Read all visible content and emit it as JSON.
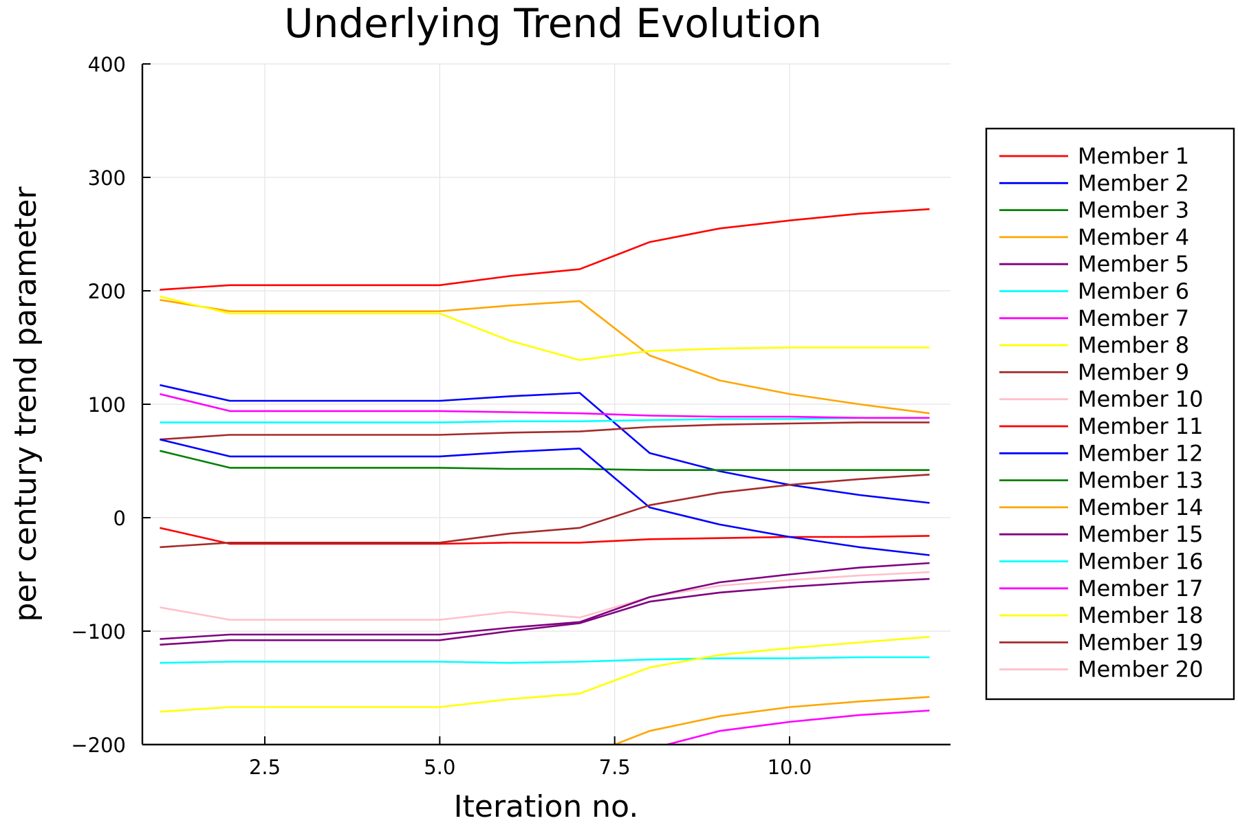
{
  "chart_data": {
    "type": "line",
    "title": "Underlying Trend Evolution",
    "xlabel": "Iteration no.",
    "ylabel": "per century trend parameter",
    "xlim": [
      0.75,
      12.3
    ],
    "ylim": [
      -200,
      400
    ],
    "xticks": [
      2.5,
      5.0,
      7.5,
      10.0
    ],
    "xtick_labels": [
      "2.5",
      "5.0",
      "7.5",
      "10.0"
    ],
    "yticks": [
      -200,
      -100,
      0,
      100,
      200,
      300,
      400
    ],
    "ytick_labels": [
      "−200",
      "−100",
      "0",
      "100",
      "200",
      "300",
      "400"
    ],
    "grid": true,
    "legend_position": "right",
    "x": [
      1,
      2,
      3,
      4,
      5,
      6,
      7,
      8,
      9,
      10,
      11,
      12
    ],
    "series": [
      {
        "name": "Member 1",
        "color": "#ff0000",
        "values": [
          201,
          205,
          205,
          205,
          205,
          213,
          219,
          243,
          255,
          262,
          268,
          272
        ]
      },
      {
        "name": "Member 2",
        "color": "#0000ff",
        "values": [
          117,
          103,
          103,
          103,
          103,
          107,
          110,
          57,
          41,
          29,
          20,
          13
        ]
      },
      {
        "name": "Member 3",
        "color": "#008000",
        "values": [
          59,
          44,
          44,
          44,
          44,
          43,
          43,
          42,
          42,
          42,
          42,
          42
        ]
      },
      {
        "name": "Member 4",
        "color": "#ffa500",
        "values": [
          192,
          182,
          182,
          182,
          182,
          187,
          191,
          143,
          121,
          109,
          100,
          92
        ]
      },
      {
        "name": "Member 5",
        "color": "#800080",
        "values": [
          -112,
          -108,
          -108,
          -108,
          -108,
          -100,
          -93,
          -74,
          -66,
          -61,
          -57,
          -54
        ]
      },
      {
        "name": "Member 6",
        "color": "#00ffff",
        "values": [
          84,
          84,
          84,
          84,
          84,
          85,
          85,
          86,
          87,
          87,
          88,
          88
        ]
      },
      {
        "name": "Member 7",
        "color": "#ff00ff",
        "values": [
          109,
          94,
          94,
          94,
          94,
          93,
          92,
          90,
          89,
          89,
          88,
          88
        ]
      },
      {
        "name": "Member 8",
        "color": "#ffff00",
        "values": [
          195,
          180,
          180,
          180,
          180,
          156,
          139,
          147,
          149,
          150,
          150,
          150
        ]
      },
      {
        "name": "Member 9",
        "color": "#a52a2a",
        "values": [
          69,
          73,
          73,
          73,
          73,
          75,
          76,
          80,
          82,
          83,
          84,
          84
        ]
      },
      {
        "name": "Member 10",
        "color": "#ffc0cb",
        "values": [
          -79,
          -90,
          -90,
          -90,
          -90,
          -83,
          -88,
          -70,
          -60,
          -55,
          -51,
          -48
        ]
      },
      {
        "name": "Member 11",
        "color": "#ff0000",
        "values": [
          -9,
          -23,
          -23,
          -23,
          -23,
          -22,
          -22,
          -19,
          -18,
          -17,
          -17,
          -16
        ]
      },
      {
        "name": "Member 12",
        "color": "#0000ff",
        "values": [
          69,
          54,
          54,
          54,
          54,
          58,
          61,
          9,
          -6,
          -17,
          -26,
          -33
        ]
      },
      {
        "name": "Member 13",
        "color": "#008000",
        "values": [
          null,
          null,
          null,
          null,
          null,
          null,
          null,
          null,
          null,
          null,
          null,
          null
        ]
      },
      {
        "name": "Member 14",
        "color": "#ffa500",
        "values": [
          null,
          null,
          null,
          null,
          null,
          null,
          -212,
          -188,
          -175,
          -167,
          -162,
          -158
        ]
      },
      {
        "name": "Member 15",
        "color": "#800080",
        "values": [
          -107,
          -103,
          -103,
          -103,
          -103,
          -97,
          -92,
          -70,
          -57,
          -50,
          -44,
          -40
        ]
      },
      {
        "name": "Member 16",
        "color": "#00ffff",
        "values": [
          -128,
          -127,
          -127,
          -127,
          -127,
          -128,
          -127,
          -125,
          -124,
          -124,
          -123,
          -123
        ]
      },
      {
        "name": "Member 17",
        "color": "#ff00ff",
        "values": [
          null,
          null,
          null,
          null,
          null,
          null,
          null,
          -204,
          -188,
          -180,
          -174,
          -170
        ]
      },
      {
        "name": "Member 18",
        "color": "#ffff00",
        "values": [
          -171,
          -167,
          -167,
          -167,
          -167,
          -160,
          -155,
          -132,
          -121,
          -115,
          -110,
          -105
        ]
      },
      {
        "name": "Member 19",
        "color": "#a52a2a",
        "values": [
          -26,
          -22,
          -22,
          -22,
          -22,
          -14,
          -9,
          11,
          22,
          29,
          34,
          38
        ]
      },
      {
        "name": "Member 20",
        "color": "#ffc0cb",
        "values": [
          null,
          null,
          null,
          null,
          null,
          null,
          null,
          null,
          null,
          null,
          null,
          null
        ]
      }
    ]
  }
}
